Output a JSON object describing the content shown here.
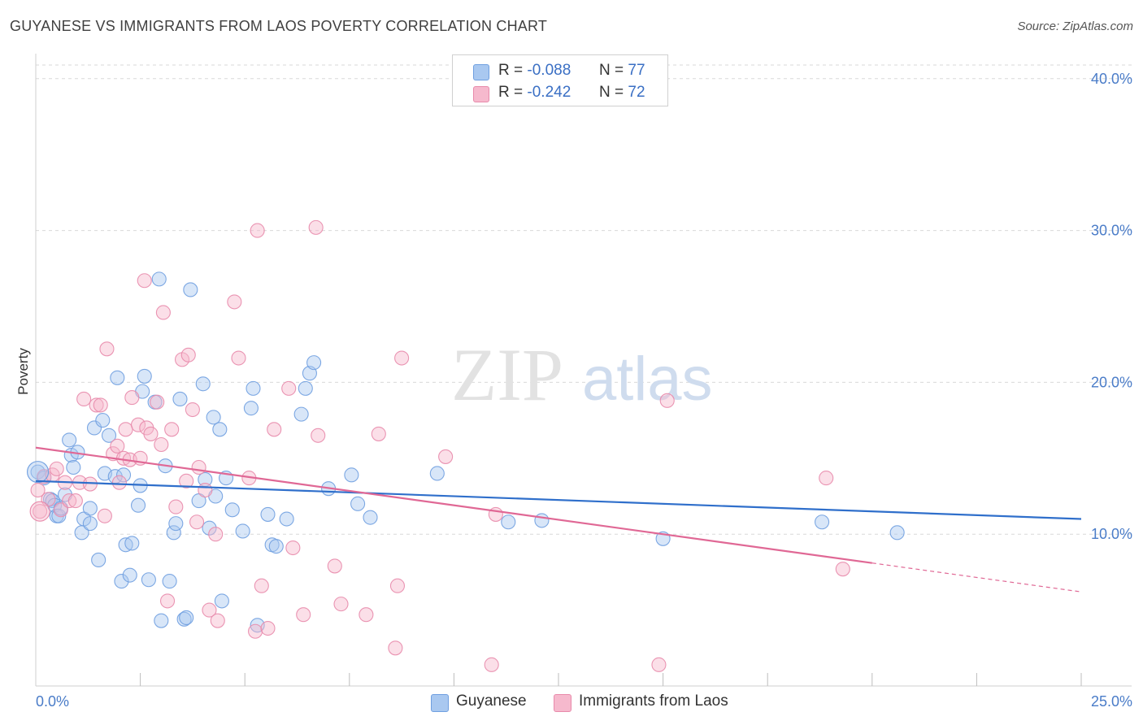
{
  "title": "GUYANESE VS IMMIGRANTS FROM LAOS POVERTY CORRELATION CHART",
  "source": "Source: ZipAtlas.com",
  "watermark": {
    "zip": "ZIP",
    "atlas": "atlas"
  },
  "legend": {
    "rows": [
      {
        "r_label": "R =",
        "r_value": "-0.088",
        "n_label": "N =",
        "n_value": "77",
        "color": "#a9c8f0",
        "border": "#6f9fe0"
      },
      {
        "r_label": "R =",
        "r_value": "-0.242",
        "n_label": "N =",
        "n_value": "72",
        "color": "#f6b9cd",
        "border": "#e88aab"
      }
    ]
  },
  "bottom_legend": [
    {
      "label": "Guyanese",
      "color": "#a9c8f0",
      "border": "#6f9fe0"
    },
    {
      "label": "Immigrants from Laos",
      "color": "#f6b9cd",
      "border": "#e88aab"
    }
  ],
  "chart_data": {
    "type": "scatter",
    "title": "GUYANESE VS IMMIGRANTS FROM LAOS POVERTY CORRELATION CHART",
    "xlabel": "",
    "ylabel": "Poverty",
    "xlim": [
      0,
      25
    ],
    "ylim": [
      0,
      40
    ],
    "x_tick_labels": [
      "0.0%",
      "25.0%"
    ],
    "y_ticks": [
      10,
      20,
      30,
      40
    ],
    "y_tick_labels": [
      "10.0%",
      "20.0%",
      "30.0%",
      "40.0%"
    ],
    "grid": "horizontal dashed",
    "legend_position": "top-center",
    "series": [
      {
        "name": "Guyanese",
        "color": "#6f9fe0",
        "fill": "#a9c8f0",
        "line_color": "#2f6fcb",
        "trend": {
          "x": [
            0,
            25
          ],
          "y": [
            13.5,
            11.0
          ]
        },
        "points": [
          [
            0.05,
            14.1
          ],
          [
            0.2,
            13.7
          ],
          [
            0.35,
            12.3
          ],
          [
            0.4,
            12.2
          ],
          [
            0.45,
            11.9
          ],
          [
            0.5,
            11.2
          ],
          [
            0.55,
            11.2
          ],
          [
            0.6,
            11.7
          ],
          [
            0.7,
            12.6
          ],
          [
            0.8,
            16.2
          ],
          [
            0.85,
            15.2
          ],
          [
            0.9,
            14.4
          ],
          [
            1.0,
            15.4
          ],
          [
            1.1,
            10.1
          ],
          [
            1.15,
            11.0
          ],
          [
            1.3,
            10.7
          ],
          [
            1.3,
            11.7
          ],
          [
            1.4,
            17.0
          ],
          [
            1.5,
            8.3
          ],
          [
            1.6,
            17.5
          ],
          [
            1.65,
            14.0
          ],
          [
            1.75,
            16.5
          ],
          [
            1.9,
            13.8
          ],
          [
            1.95,
            20.3
          ],
          [
            2.05,
            6.9
          ],
          [
            2.1,
            13.9
          ],
          [
            2.15,
            9.3
          ],
          [
            2.25,
            7.3
          ],
          [
            2.3,
            9.4
          ],
          [
            2.45,
            11.9
          ],
          [
            2.5,
            13.2
          ],
          [
            2.55,
            19.4
          ],
          [
            2.6,
            20.4
          ],
          [
            2.7,
            7.0
          ],
          [
            2.85,
            18.7
          ],
          [
            2.95,
            26.8
          ],
          [
            3.1,
            14.5
          ],
          [
            3.2,
            6.9
          ],
          [
            3.3,
            10.1
          ],
          [
            3.35,
            10.7
          ],
          [
            3.45,
            18.9
          ],
          [
            3.55,
            4.4
          ],
          [
            3.6,
            4.5
          ],
          [
            3.7,
            26.1
          ],
          [
            3.9,
            12.2
          ],
          [
            4.0,
            19.9
          ],
          [
            4.05,
            13.6
          ],
          [
            4.15,
            10.4
          ],
          [
            4.25,
            17.7
          ],
          [
            4.3,
            12.5
          ],
          [
            4.4,
            16.9
          ],
          [
            4.45,
            5.6
          ],
          [
            4.55,
            13.7
          ],
          [
            4.7,
            11.6
          ],
          [
            4.95,
            10.2
          ],
          [
            5.15,
            18.3
          ],
          [
            5.2,
            19.6
          ],
          [
            5.3,
            4.0
          ],
          [
            5.55,
            11.3
          ],
          [
            5.65,
            9.3
          ],
          [
            5.75,
            9.2
          ],
          [
            6.0,
            11.0
          ],
          [
            6.35,
            17.9
          ],
          [
            6.45,
            19.6
          ],
          [
            6.55,
            20.6
          ],
          [
            6.65,
            21.3
          ],
          [
            7.0,
            13.0
          ],
          [
            7.55,
            13.9
          ],
          [
            7.7,
            12.0
          ],
          [
            8.0,
            11.1
          ],
          [
            9.6,
            14.0
          ],
          [
            11.3,
            10.8
          ],
          [
            12.1,
            10.9
          ],
          [
            15.0,
            9.7
          ],
          [
            18.8,
            10.8
          ],
          [
            20.6,
            10.1
          ],
          [
            3.0,
            4.3
          ]
        ]
      },
      {
        "name": "Immigrants from Laos",
        "color": "#e88aab",
        "fill": "#f6b9cd",
        "line_color": "#e06895",
        "trend": {
          "x": [
            0,
            20
          ],
          "y": [
            15.7,
            8.1
          ]
        },
        "trend_dashed": {
          "x": [
            20,
            25
          ],
          "y": [
            8.1,
            6.2
          ]
        },
        "points": [
          [
            0.05,
            12.9
          ],
          [
            0.1,
            11.5
          ],
          [
            0.2,
            13.8
          ],
          [
            0.3,
            12.3
          ],
          [
            0.4,
            13.9
          ],
          [
            0.5,
            14.3
          ],
          [
            0.6,
            11.6
          ],
          [
            0.7,
            13.4
          ],
          [
            0.8,
            12.2
          ],
          [
            0.95,
            12.2
          ],
          [
            1.05,
            13.4
          ],
          [
            1.15,
            18.9
          ],
          [
            1.3,
            13.3
          ],
          [
            1.45,
            18.5
          ],
          [
            1.55,
            18.5
          ],
          [
            1.65,
            11.2
          ],
          [
            1.7,
            22.2
          ],
          [
            1.85,
            15.3
          ],
          [
            1.95,
            15.8
          ],
          [
            2.0,
            13.4
          ],
          [
            2.1,
            15.0
          ],
          [
            2.15,
            16.9
          ],
          [
            2.25,
            14.9
          ],
          [
            2.3,
            19.0
          ],
          [
            2.45,
            17.2
          ],
          [
            2.5,
            15.0
          ],
          [
            2.6,
            26.7
          ],
          [
            2.65,
            17.0
          ],
          [
            2.75,
            16.6
          ],
          [
            2.9,
            18.7
          ],
          [
            3.0,
            15.9
          ],
          [
            3.05,
            24.6
          ],
          [
            3.15,
            5.6
          ],
          [
            3.25,
            16.9
          ],
          [
            3.35,
            11.8
          ],
          [
            3.5,
            21.5
          ],
          [
            3.6,
            13.5
          ],
          [
            3.65,
            21.8
          ],
          [
            3.75,
            18.2
          ],
          [
            3.85,
            10.8
          ],
          [
            3.9,
            14.4
          ],
          [
            4.05,
            12.9
          ],
          [
            4.15,
            5.0
          ],
          [
            4.3,
            10.0
          ],
          [
            4.35,
            4.3
          ],
          [
            4.75,
            25.3
          ],
          [
            4.85,
            21.6
          ],
          [
            5.1,
            13.7
          ],
          [
            5.25,
            3.6
          ],
          [
            5.3,
            30.0
          ],
          [
            5.4,
            6.6
          ],
          [
            5.55,
            3.8
          ],
          [
            5.7,
            16.9
          ],
          [
            6.05,
            19.6
          ],
          [
            6.15,
            9.1
          ],
          [
            6.4,
            4.7
          ],
          [
            6.7,
            30.2
          ],
          [
            6.75,
            16.5
          ],
          [
            7.15,
            7.9
          ],
          [
            7.3,
            5.4
          ],
          [
            7.9,
            4.7
          ],
          [
            8.2,
            16.6
          ],
          [
            8.6,
            2.5
          ],
          [
            8.65,
            6.6
          ],
          [
            8.75,
            21.6
          ],
          [
            9.8,
            15.1
          ],
          [
            10.9,
            1.4
          ],
          [
            11.0,
            11.3
          ],
          [
            14.9,
            1.4
          ],
          [
            15.1,
            18.8
          ],
          [
            18.9,
            13.7
          ],
          [
            19.3,
            7.7
          ]
        ]
      }
    ]
  }
}
